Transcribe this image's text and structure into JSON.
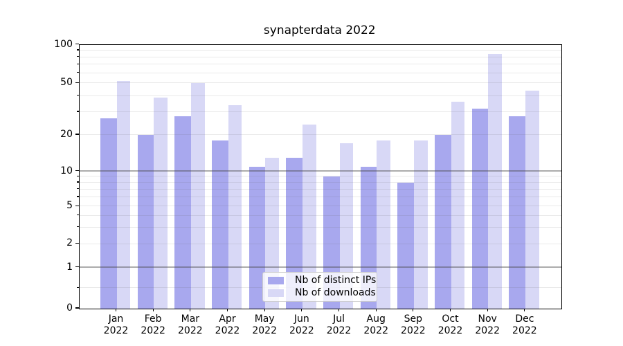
{
  "chart_data": {
    "type": "bar",
    "title": "synapterdata 2022",
    "xlabel": "",
    "ylabel": "",
    "x_tick_year": "2022",
    "categories": [
      "Jan",
      "Feb",
      "Mar",
      "Apr",
      "May",
      "Jun",
      "Jul",
      "Aug",
      "Sep",
      "Oct",
      "Nov",
      "Dec"
    ],
    "series": [
      {
        "name": "Nb of distinct IPs",
        "color": "#a8a8ee",
        "values": [
          27,
          20,
          28,
          18,
          11,
          13,
          9,
          11,
          8,
          20,
          32,
          28
        ]
      },
      {
        "name": "Nb of downloads",
        "color": "#d8d8f6",
        "values": [
          52,
          39,
          50,
          34,
          13,
          24,
          17,
          18,
          18,
          36,
          85,
          44
        ]
      }
    ],
    "y_axis": {
      "scale": "log-like",
      "ticks": [
        0,
        1,
        2,
        5,
        10,
        20,
        50,
        100
      ],
      "major_gridlines": [
        1,
        10
      ],
      "minor_gridlines": [
        0.5,
        2,
        3,
        4,
        5,
        6,
        7,
        8,
        9,
        20,
        30,
        40,
        50,
        60,
        70,
        80,
        90
      ],
      "ylim": [
        0,
        100
      ]
    },
    "grid": true,
    "legend": {
      "position": "lower center",
      "entries": [
        "Nb of distinct IPs",
        "Nb of downloads"
      ]
    }
  }
}
